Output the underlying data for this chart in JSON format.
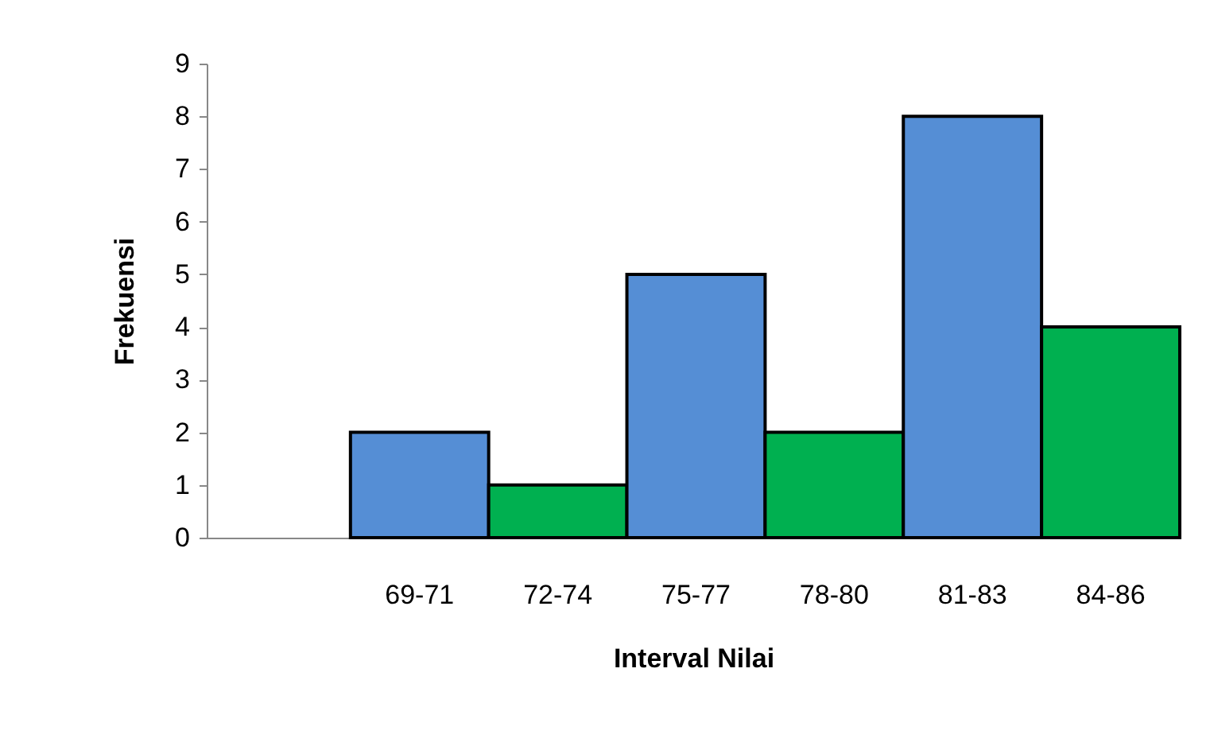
{
  "chart_data": {
    "type": "bar",
    "categories": [
      "69-71",
      "72-74",
      "75-77",
      "78-80",
      "81-83",
      "84-86"
    ],
    "values": [
      2,
      1,
      5,
      2,
      8,
      4
    ],
    "colors": [
      "#558ed5",
      "#00b050",
      "#558ed5",
      "#00b050",
      "#558ed5",
      "#00b050"
    ],
    "ylim": [
      0,
      9
    ],
    "yticks": [
      0,
      1,
      2,
      3,
      4,
      5,
      6,
      7,
      8,
      9
    ],
    "xlabel": "Interval  Nilai",
    "ylabel": "Frekuensi",
    "grid": false
  }
}
